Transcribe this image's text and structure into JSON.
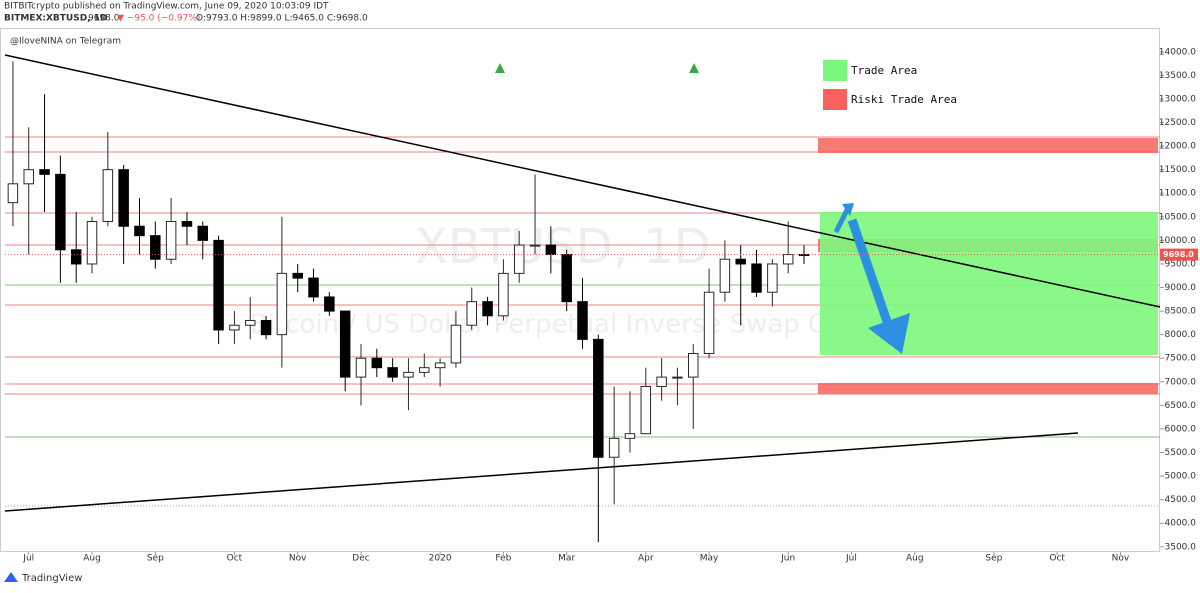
{
  "header": {
    "publisher": "BITBITcrypto published on TradingView.com, June 09, 2020 10:03:09 IDT",
    "symbol": "BITMEX:XBTUSD, 1D",
    "last": "9698.0",
    "change": "▼ −95.0 (−0.97%)",
    "ohlc": "O:9793.0 H:9899.0 L:9465.0 C:9698.0"
  },
  "note": "@IloveNINA on Telegram",
  "watermark": {
    "symbol": "XBTUSD, 1D",
    "description": "Bitcoin / US Dollar Perpetual Inverse Swap Contract"
  },
  "legend": [
    {
      "label": "Trade Area",
      "color": "#7cf77c"
    },
    {
      "label": "Riski Trade Area",
      "color": "#f8615d"
    }
  ],
  "footer": "TradingView",
  "chart_data": {
    "type": "candlestick",
    "categories": [
      null,
      "Jul",
      null,
      null,
      null,
      "Aug",
      null,
      null,
      null,
      "Sep",
      null,
      null,
      null,
      null,
      "Oct",
      null,
      null,
      null,
      "Nov",
      null,
      null,
      null,
      "Dec",
      null,
      null,
      null,
      null,
      "2020",
      null,
      null,
      null,
      "Feb",
      null,
      null,
      null,
      "Mar",
      null,
      null,
      null,
      null,
      "Apr",
      null,
      null,
      null,
      "May",
      null,
      null,
      null,
      null,
      "Jun",
      null,
      null,
      null,
      "Jul",
      null,
      null,
      null,
      "Aug",
      null,
      null,
      null,
      null,
      "Sep",
      null,
      null,
      null,
      "Oct",
      null,
      null,
      null,
      "Nov",
      null,
      null
    ],
    "open": [
      10800,
      11200,
      11500,
      11400,
      9800,
      9500,
      10400,
      11500,
      10300,
      10100,
      9600,
      10400,
      10300,
      10000,
      8100,
      8200,
      8300,
      8000,
      9300,
      9200,
      8800,
      8500,
      7100,
      7500,
      7300,
      7100,
      7200,
      7300,
      7400,
      8200,
      8700,
      8400,
      9300,
      9900,
      9900,
      9700,
      8700,
      7900,
      5400,
      5800,
      5900,
      6900,
      7100,
      7100,
      7600,
      8900,
      9600,
      9500,
      8900,
      9500,
      9700,
      null,
      null,
      null,
      null,
      null,
      null,
      null,
      null,
      null,
      null,
      null,
      null,
      null,
      null,
      null,
      null,
      null,
      null,
      null,
      null,
      null,
      null
    ],
    "high": [
      13800,
      12400,
      13100,
      11800,
      10600,
      10500,
      12300,
      11600,
      10900,
      10400,
      10900,
      10600,
      10400,
      10100,
      8500,
      8800,
      8400,
      10500,
      9500,
      9400,
      8900,
      8500,
      7800,
      7700,
      7500,
      7500,
      7600,
      7500,
      8500,
      9000,
      8800,
      9600,
      10200,
      11400,
      10300,
      9800,
      9200,
      8000,
      6900,
      6800,
      7300,
      7500,
      7300,
      7800,
      9400,
      10000,
      9900,
      9800,
      9600,
      10400,
      9900,
      null,
      null,
      null,
      null,
      null,
      null,
      null,
      null,
      null,
      null,
      null,
      null,
      null,
      null,
      null,
      null,
      null,
      null,
      null,
      null,
      null,
      null
    ],
    "low": [
      10300,
      9700,
      10600,
      9100,
      9100,
      9300,
      10300,
      9500,
      9700,
      9400,
      9500,
      9900,
      9600,
      7800,
      7800,
      7900,
      7900,
      7300,
      8900,
      8700,
      8400,
      6800,
      6500,
      7100,
      7000,
      6400,
      7100,
      6900,
      7300,
      8100,
      8200,
      8300,
      9100,
      9700,
      9300,
      8500,
      7700,
      3600,
      4400,
      5500,
      5900,
      6600,
      6500,
      6000,
      7500,
      8700,
      8200,
      8800,
      8600,
      9300,
      9500,
      null,
      null,
      null,
      null,
      null,
      null,
      null,
      null,
      null,
      null,
      null,
      null,
      null,
      null,
      null,
      null,
      null,
      null,
      null,
      null,
      null,
      null
    ],
    "close": [
      11200,
      11500,
      11400,
      9800,
      9500,
      10400,
      11500,
      10300,
      10100,
      9600,
      10400,
      10300,
      10000,
      8100,
      8200,
      8300,
      8000,
      9300,
      9200,
      8800,
      8500,
      7100,
      7500,
      7300,
      7100,
      7200,
      7300,
      7400,
      8200,
      8700,
      8400,
      9300,
      9900,
      9900,
      9700,
      8700,
      7900,
      5400,
      5800,
      5900,
      6900,
      7100,
      7100,
      7600,
      8900,
      9600,
      9500,
      8900,
      9500,
      9700,
      9698,
      null,
      null,
      null,
      null,
      null,
      null,
      null,
      null,
      null,
      null,
      null,
      null,
      null,
      null,
      null,
      null,
      null,
      null,
      null,
      null,
      null,
      null
    ],
    "up_color": "#2b2b2b",
    "down_color": "#000000",
    "price_label": {
      "value": 9698,
      "label": "9698.0"
    },
    "price_label_color": "#ef5350",
    "ylim": [
      3390,
      14420
    ],
    "yticks": [
      {
        "value": 3500,
        "label": "3500.0"
      },
      {
        "value": 4000,
        "label": "4000.0"
      },
      {
        "value": 4500,
        "label": "4500.0"
      },
      {
        "value": 5000,
        "label": "5000.0"
      },
      {
        "value": 5500,
        "label": "5500.0"
      },
      {
        "value": 6000,
        "label": "6000.0"
      },
      {
        "value": 6500,
        "label": "6500.0"
      },
      {
        "value": 7000,
        "label": "7000.0"
      },
      {
        "value": 7500,
        "label": "7500.0"
      },
      {
        "value": 8000,
        "label": "8000.0"
      },
      {
        "value": 8500,
        "label": "8500.0"
      },
      {
        "value": 9000,
        "label": "9000.0"
      },
      {
        "value": 9500,
        "label": "9500.0"
      },
      {
        "value": 10000,
        "label": "10000.0"
      },
      {
        "value": 10500,
        "label": "10500.0"
      },
      {
        "value": 11000,
        "label": "11000.0"
      },
      {
        "value": 11500,
        "label": "11500.0"
      },
      {
        "value": 12000,
        "label": "12000.0"
      },
      {
        "value": 12500,
        "label": "12500.0"
      },
      {
        "value": 13000,
        "label": "13000.0"
      },
      {
        "value": 13500,
        "label": "13500.0"
      },
      {
        "value": 14000,
        "label": "14000.0"
      }
    ]
  }
}
